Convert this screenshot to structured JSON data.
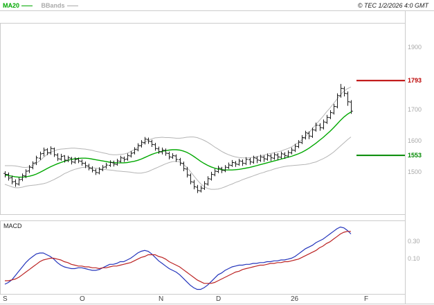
{
  "header": {
    "legend": [
      {
        "label": "MA20",
        "color": "#00a800"
      },
      {
        "label": "BBands",
        "color": "#aaaaaa"
      }
    ],
    "copyright": "© TEC 1/2/2026 4:0 GMT"
  },
  "price_axis": {
    "ticks": [
      {
        "label": "1900"
      },
      {
        "label": "1700"
      },
      {
        "label": "1600"
      },
      {
        "label": "1500"
      }
    ]
  },
  "levels": {
    "resistance": {
      "label": "1793",
      "value": 1793,
      "color": "#bb0000"
    },
    "support": {
      "label": "1553",
      "value": 1553,
      "color": "#008800"
    }
  },
  "x_axis": {
    "labels": [
      "S",
      "O",
      "N",
      "D",
      "26",
      "F"
    ]
  },
  "macd_panel": {
    "title": "MACD",
    "ticks": [
      {
        "label": "0.30",
        "value": 0.3
      },
      {
        "label": "0.10",
        "value": 0.1
      }
    ]
  },
  "chart_data": {
    "type": "bar",
    "subtype": "ohlc-with-overlays",
    "title": "Daily price with MA20, Bollinger Bands and MACD",
    "x_labels": [
      "S",
      "O",
      "N",
      "D",
      "26",
      "F"
    ],
    "price_range": [
      1362,
      1978
    ],
    "macd_range": [
      -0.32,
      0.536
    ],
    "grid": false,
    "legend_position": "top-left",
    "colors": {
      "ma20": "#00a800",
      "bbands": "#b4b4b4",
      "bars": "#1a1a1a",
      "macd": "#2233bb",
      "signal": "#bb2222",
      "frame": "#cccccc"
    },
    "ohlc": [
      [
        1495,
        1502,
        1482,
        1492
      ],
      [
        1492,
        1498,
        1472,
        1480
      ],
      [
        1481,
        1488,
        1460,
        1468
      ],
      [
        1469,
        1476,
        1452,
        1462
      ],
      [
        1461,
        1482,
        1456,
        1475
      ],
      [
        1476,
        1495,
        1470,
        1488
      ],
      [
        1487,
        1508,
        1480,
        1502
      ],
      [
        1503,
        1522,
        1496,
        1515
      ],
      [
        1514,
        1534,
        1508,
        1528
      ],
      [
        1529,
        1552,
        1522,
        1545
      ],
      [
        1544,
        1565,
        1538,
        1558
      ],
      [
        1559,
        1578,
        1550,
        1570
      ],
      [
        1571,
        1576,
        1554,
        1562
      ],
      [
        1561,
        1582,
        1555,
        1575
      ],
      [
        1574,
        1578,
        1548,
        1555
      ],
      [
        1554,
        1560,
        1535,
        1542
      ],
      [
        1541,
        1558,
        1536,
        1550
      ],
      [
        1551,
        1554,
        1530,
        1538
      ],
      [
        1537,
        1552,
        1531,
        1545
      ],
      [
        1544,
        1548,
        1524,
        1532
      ],
      [
        1531,
        1547,
        1526,
        1540
      ],
      [
        1541,
        1546,
        1528,
        1535
      ],
      [
        1534,
        1540,
        1520,
        1528
      ],
      [
        1527,
        1533,
        1512,
        1520
      ],
      [
        1519,
        1526,
        1505,
        1512
      ],
      [
        1511,
        1518,
        1498,
        1505
      ],
      [
        1504,
        1510,
        1490,
        1498
      ],
      [
        1497,
        1515,
        1492,
        1508
      ],
      [
        1507,
        1522,
        1502,
        1515
      ],
      [
        1516,
        1529,
        1510,
        1522
      ],
      [
        1521,
        1537,
        1516,
        1530
      ],
      [
        1529,
        1536,
        1517,
        1525
      ],
      [
        1524,
        1542,
        1520,
        1535
      ],
      [
        1534,
        1552,
        1530,
        1545
      ],
      [
        1544,
        1549,
        1532,
        1540
      ],
      [
        1541,
        1559,
        1536,
        1552
      ],
      [
        1551,
        1567,
        1546,
        1560
      ],
      [
        1561,
        1579,
        1556,
        1572
      ],
      [
        1571,
        1592,
        1566,
        1585
      ],
      [
        1584,
        1602,
        1578,
        1595
      ],
      [
        1594,
        1612,
        1588,
        1605
      ],
      [
        1604,
        1610,
        1590,
        1598
      ],
      [
        1597,
        1603,
        1580,
        1588
      ],
      [
        1587,
        1593,
        1568,
        1575
      ],
      [
        1574,
        1581,
        1558,
        1565
      ],
      [
        1564,
        1578,
        1556,
        1570
      ],
      [
        1569,
        1575,
        1552,
        1560
      ],
      [
        1559,
        1565,
        1540,
        1548
      ],
      [
        1547,
        1560,
        1542,
        1552
      ],
      [
        1551,
        1556,
        1532,
        1540
      ],
      [
        1539,
        1545,
        1520,
        1528
      ],
      [
        1527,
        1533,
        1502,
        1510
      ],
      [
        1509,
        1516,
        1482,
        1490
      ],
      [
        1489,
        1495,
        1460,
        1468
      ],
      [
        1467,
        1474,
        1444,
        1452
      ],
      [
        1451,
        1458,
        1432,
        1440
      ],
      [
        1439,
        1456,
        1434,
        1448
      ],
      [
        1447,
        1470,
        1442,
        1462
      ],
      [
        1461,
        1486,
        1456,
        1478
      ],
      [
        1477,
        1500,
        1472,
        1492
      ],
      [
        1491,
        1510,
        1486,
        1502
      ],
      [
        1501,
        1520,
        1496,
        1512
      ],
      [
        1511,
        1516,
        1496,
        1505
      ],
      [
        1504,
        1522,
        1499,
        1515
      ],
      [
        1514,
        1530,
        1509,
        1522
      ],
      [
        1521,
        1538,
        1516,
        1530
      ],
      [
        1529,
        1535,
        1516,
        1525
      ],
      [
        1524,
        1542,
        1520,
        1535
      ],
      [
        1534,
        1540,
        1519,
        1528
      ],
      [
        1527,
        1547,
        1522,
        1540
      ],
      [
        1539,
        1545,
        1523,
        1532
      ],
      [
        1531,
        1552,
        1526,
        1545
      ],
      [
        1544,
        1550,
        1528,
        1538
      ],
      [
        1537,
        1555,
        1532,
        1548
      ],
      [
        1547,
        1553,
        1532,
        1542
      ],
      [
        1541,
        1559,
        1536,
        1552
      ],
      [
        1551,
        1557,
        1535,
        1545
      ],
      [
        1544,
        1562,
        1539,
        1555
      ],
      [
        1554,
        1560,
        1538,
        1548
      ],
      [
        1547,
        1565,
        1542,
        1558
      ],
      [
        1557,
        1563,
        1542,
        1552
      ],
      [
        1551,
        1569,
        1546,
        1562
      ],
      [
        1561,
        1578,
        1556,
        1570
      ],
      [
        1569,
        1590,
        1564,
        1582
      ],
      [
        1581,
        1602,
        1576,
        1595
      ],
      [
        1594,
        1618,
        1589,
        1610
      ],
      [
        1609,
        1632,
        1604,
        1625
      ],
      [
        1624,
        1630,
        1605,
        1615
      ],
      [
        1614,
        1642,
        1609,
        1635
      ],
      [
        1634,
        1658,
        1629,
        1650
      ],
      [
        1649,
        1656,
        1632,
        1642
      ],
      [
        1641,
        1668,
        1636,
        1660
      ],
      [
        1659,
        1683,
        1654,
        1675
      ],
      [
        1674,
        1698,
        1669,
        1690
      ],
      [
        1689,
        1718,
        1684,
        1710
      ],
      [
        1709,
        1752,
        1704,
        1745
      ],
      [
        1744,
        1782,
        1738,
        1768
      ],
      [
        1767,
        1774,
        1742,
        1752
      ],
      [
        1751,
        1758,
        1712,
        1725
      ],
      [
        1724,
        1730,
        1686,
        1695
      ]
    ],
    "ma20": [
      1490,
      1488,
      1486,
      1484,
      1483,
      1483,
      1484,
      1486,
      1489,
      1493,
      1498,
      1504,
      1510,
      1516,
      1521,
      1526,
      1530,
      1534,
      1537,
      1540,
      1542,
      1543,
      1544,
      1544,
      1543,
      1541,
      1539,
      1537,
      1535,
      1533,
      1531,
      1530,
      1529,
      1529,
      1529,
      1530,
      1532,
      1534,
      1537,
      1541,
      1546,
      1551,
      1556,
      1560,
      1563,
      1566,
      1568,
      1570,
      1571,
      1571,
      1570,
      1567,
      1563,
      1557,
      1550,
      1542,
      1534,
      1527,
      1521,
      1516,
      1512,
      1509,
      1507,
      1506,
      1506,
      1506,
      1507,
      1508,
      1510,
      1512,
      1514,
      1517,
      1520,
      1523,
      1526,
      1529,
      1532,
      1535,
      1538,
      1541,
      1544,
      1547,
      1550,
      1554,
      1558,
      1563,
      1569,
      1576,
      1584,
      1592,
      1601,
      1610,
      1620,
      1630,
      1641,
      1653,
      1665,
      1676,
      1685,
      1692
    ],
    "bb_upper": [
      1520,
      1520,
      1520,
      1519,
      1517,
      1515,
      1514,
      1516,
      1521,
      1528,
      1536,
      1546,
      1555,
      1562,
      1567,
      1571,
      1573,
      1574,
      1575,
      1576,
      1576,
      1575,
      1574,
      1573,
      1571,
      1569,
      1566,
      1564,
      1561,
      1559,
      1556,
      1555,
      1555,
      1556,
      1557,
      1560,
      1565,
      1571,
      1578,
      1586,
      1594,
      1601,
      1606,
      1609,
      1610,
      1611,
      1610,
      1610,
      1609,
      1608,
      1608,
      1609,
      1611,
      1612,
      1612,
      1610,
      1606,
      1601,
      1595,
      1588,
      1580,
      1573,
      1566,
      1560,
      1555,
      1551,
      1548,
      1546,
      1545,
      1545,
      1545,
      1547,
      1549,
      1551,
      1554,
      1556,
      1559,
      1561,
      1564,
      1567,
      1571,
      1575,
      1580,
      1587,
      1594,
      1603,
      1614,
      1626,
      1639,
      1652,
      1665,
      1678,
      1692,
      1705,
      1719,
      1733,
      1747,
      1759,
      1767,
      1772
    ],
    "bb_lower": [
      1460,
      1456,
      1452,
      1449,
      1449,
      1451,
      1454,
      1456,
      1457,
      1458,
      1460,
      1462,
      1465,
      1470,
      1475,
      1481,
      1487,
      1494,
      1499,
      1504,
      1508,
      1511,
      1514,
      1515,
      1515,
      1513,
      1512,
      1510,
      1509,
      1507,
      1506,
      1505,
      1503,
      1502,
      1501,
      1500,
      1499,
      1497,
      1496,
      1496,
      1498,
      1501,
      1506,
      1511,
      1516,
      1521,
      1526,
      1530,
      1533,
      1534,
      1532,
      1525,
      1515,
      1502,
      1488,
      1474,
      1462,
      1453,
      1447,
      1444,
      1444,
      1445,
      1448,
      1452,
      1457,
      1461,
      1466,
      1470,
      1475,
      1479,
      1483,
      1487,
      1491,
      1495,
      1498,
      1502,
      1505,
      1509,
      1512,
      1515,
      1517,
      1519,
      1520,
      1521,
      1522,
      1523,
      1524,
      1526,
      1529,
      1532,
      1537,
      1542,
      1548,
      1555,
      1563,
      1573,
      1583,
      1593,
      1603,
      1612
    ],
    "macd": [
      -0.2,
      -0.18,
      -0.15,
      -0.1,
      -0.05,
      0.0,
      0.05,
      0.09,
      0.12,
      0.15,
      0.16,
      0.16,
      0.14,
      0.12,
      0.09,
      0.05,
      0.02,
      0.0,
      -0.01,
      -0.02,
      -0.02,
      -0.01,
      -0.01,
      -0.02,
      -0.03,
      -0.04,
      -0.04,
      -0.03,
      -0.01,
      0.01,
      0.03,
      0.03,
      0.04,
      0.06,
      0.06,
      0.08,
      0.1,
      0.13,
      0.16,
      0.18,
      0.19,
      0.18,
      0.15,
      0.11,
      0.07,
      0.04,
      0.01,
      -0.02,
      -0.04,
      -0.06,
      -0.09,
      -0.13,
      -0.17,
      -0.21,
      -0.24,
      -0.26,
      -0.26,
      -0.24,
      -0.21,
      -0.17,
      -0.13,
      -0.09,
      -0.07,
      -0.04,
      -0.02,
      0.0,
      0.01,
      0.02,
      0.02,
      0.03,
      0.03,
      0.04,
      0.04,
      0.05,
      0.05,
      0.06,
      0.06,
      0.07,
      0.07,
      0.08,
      0.08,
      0.09,
      0.1,
      0.12,
      0.15,
      0.18,
      0.21,
      0.23,
      0.25,
      0.28,
      0.3,
      0.32,
      0.35,
      0.38,
      0.41,
      0.44,
      0.46,
      0.45,
      0.42,
      0.38
    ],
    "macd_signal": [
      -0.16,
      -0.16,
      -0.15,
      -0.14,
      -0.12,
      -0.09,
      -0.06,
      -0.03,
      0.0,
      0.03,
      0.06,
      0.08,
      0.09,
      0.1,
      0.1,
      0.09,
      0.08,
      0.06,
      0.05,
      0.03,
      0.02,
      0.01,
      0.01,
      0.0,
      0.0,
      -0.01,
      -0.01,
      -0.02,
      -0.01,
      -0.01,
      0.0,
      0.01,
      0.01,
      0.02,
      0.03,
      0.04,
      0.05,
      0.07,
      0.09,
      0.11,
      0.12,
      0.14,
      0.14,
      0.14,
      0.12,
      0.11,
      0.09,
      0.06,
      0.04,
      0.02,
      0.0,
      -0.03,
      -0.06,
      -0.09,
      -0.12,
      -0.15,
      -0.17,
      -0.19,
      -0.19,
      -0.19,
      -0.18,
      -0.16,
      -0.14,
      -0.12,
      -0.1,
      -0.08,
      -0.06,
      -0.05,
      -0.03,
      -0.02,
      -0.01,
      0.0,
      0.01,
      0.02,
      0.02,
      0.03,
      0.04,
      0.04,
      0.05,
      0.05,
      0.06,
      0.06,
      0.07,
      0.08,
      0.09,
      0.11,
      0.13,
      0.15,
      0.17,
      0.19,
      0.22,
      0.24,
      0.27,
      0.29,
      0.32,
      0.35,
      0.38,
      0.4,
      0.41,
      0.41
    ]
  }
}
